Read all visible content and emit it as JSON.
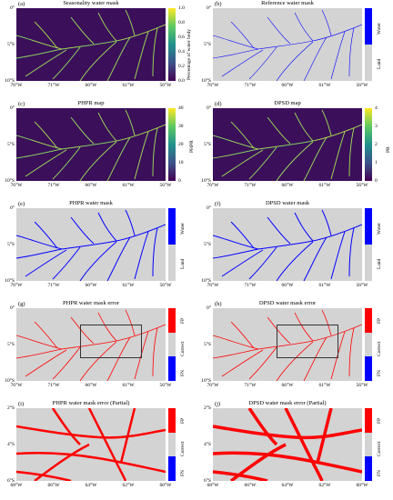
{
  "panels": [
    {
      "id": "a",
      "label": "(a)",
      "title": "Seasonality water mask",
      "type": "continuous",
      "cbar_ticks": [
        "1.0",
        "0.8",
        "0.6",
        "0.4",
        "0.2",
        "0.0"
      ],
      "cbar_label": "Percentage of water body",
      "yticks": [
        "0°",
        "5°S",
        "10°S"
      ],
      "xticks": [
        "76°W",
        "71°W",
        "66°W",
        "61°W",
        "56°W"
      ]
    },
    {
      "id": "b",
      "label": "(b)",
      "title": "Reference water mask",
      "type": "binary",
      "classes": [
        "Water",
        "Land"
      ],
      "yticks": [
        "0°",
        "5°S",
        "10°S"
      ],
      "xticks": [
        "76°W",
        "71°W",
        "66°W",
        "61°W",
        "56°W"
      ]
    },
    {
      "id": "c",
      "label": "(c)",
      "title": "PHPR map",
      "type": "continuous",
      "cbar_ticks": [
        "40",
        "30",
        "20",
        "10",
        "0"
      ],
      "cbar_label": "PHPR",
      "yticks": [
        "0°",
        "5°S",
        "10°S"
      ],
      "xticks": [
        "76°W",
        "71°W",
        "66°W",
        "61°W",
        "56°W"
      ]
    },
    {
      "id": "d",
      "label": "(d)",
      "title": "DPSD map",
      "type": "continuous",
      "cbar_ticks": [
        "4",
        "3",
        "2",
        "1",
        "0"
      ],
      "cbar_label": "PR",
      "yticks": [
        "0°",
        "5°S",
        "10°S"
      ],
      "xticks": [
        "76°W",
        "71°W",
        "66°W",
        "61°W",
        "56°W"
      ]
    },
    {
      "id": "e",
      "label": "(e)",
      "title": "PHPR water mask",
      "type": "binary",
      "classes": [
        "Water",
        "Land"
      ],
      "yticks": [
        "0°",
        "5°S",
        "10°S"
      ],
      "xticks": [
        "76°W",
        "71°W",
        "66°W",
        "61°W",
        "56°W"
      ]
    },
    {
      "id": "f",
      "label": "(f)",
      "title": "DPSD water mask",
      "type": "binary",
      "classes": [
        "Water",
        "Land"
      ],
      "yticks": [
        "0°",
        "5°S",
        "10°S"
      ],
      "xticks": [
        "76°W",
        "71°W",
        "66°W",
        "61°W",
        "56°W"
      ]
    },
    {
      "id": "g",
      "label": "(g)",
      "title": "PHPR water mask error",
      "type": "error",
      "classes": [
        "FP",
        "Correct",
        "FN"
      ],
      "yticks": [
        "0°",
        "5°S",
        "10°S"
      ],
      "xticks": [
        "76°W",
        "71°W",
        "66°W",
        "61°W",
        "56°W"
      ]
    },
    {
      "id": "h",
      "label": "(h)",
      "title": "DPSD water mask error",
      "type": "error",
      "classes": [
        "FP",
        "Correct",
        "FN"
      ],
      "yticks": [
        "0°",
        "5°S",
        "10°S"
      ],
      "xticks": [
        "76°W",
        "71°W",
        "66°W",
        "61°W",
        "56°W"
      ]
    },
    {
      "id": "i",
      "label": "(i)",
      "title": "PHPR water mask error (Partial)",
      "type": "error",
      "classes": [
        "FP",
        "Correct",
        "FN"
      ],
      "yticks": [
        "2°S",
        "4°S",
        "6°S"
      ],
      "xticks": [
        "68°W",
        "66°W",
        "64°W",
        "62°W",
        "60°W"
      ]
    },
    {
      "id": "j",
      "label": "(j)",
      "title": "DPSD water mask error (Partial)",
      "type": "error",
      "classes": [
        "FP",
        "Correct",
        "FN"
      ],
      "yticks": [
        "2°S",
        "4°S",
        "6°S"
      ],
      "xticks": [
        "68°W",
        "66°W",
        "64°W",
        "62°W",
        "60°W"
      ]
    }
  ],
  "colors": {
    "water": "#0000ff",
    "land": "#d3d3d3",
    "fp": "#ff0000",
    "fn": "#0000ff",
    "correct": "#d3d3d3"
  }
}
